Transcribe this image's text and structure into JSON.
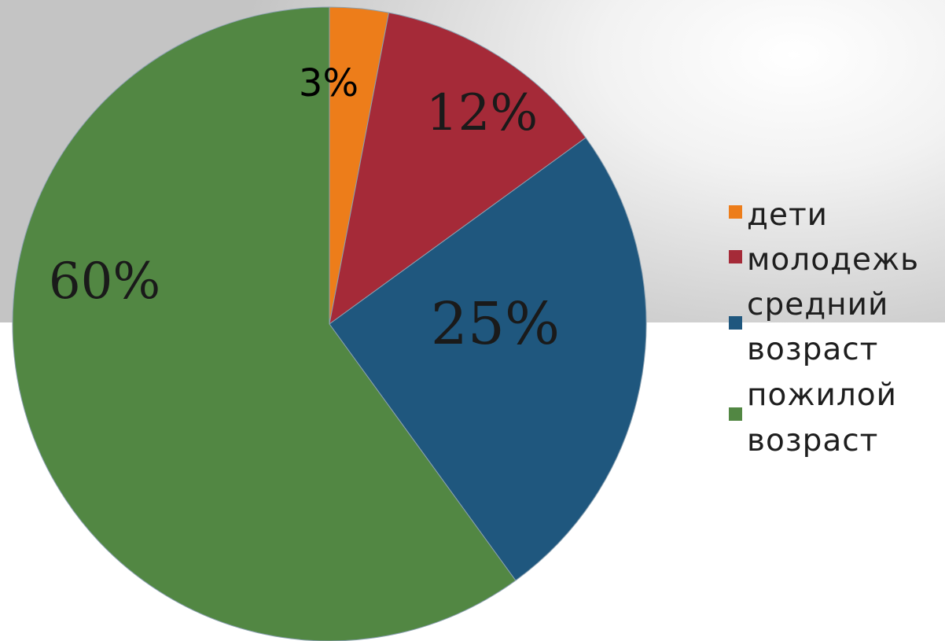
{
  "chart_data": {
    "type": "pie",
    "slices": [
      {
        "name": "дети",
        "value": 3,
        "label": "3%",
        "color": "#ed7d1a"
      },
      {
        "name": "молодежь",
        "value": 12,
        "label": "12%",
        "color": "#a52a38"
      },
      {
        "name": "средний возраст",
        "value": 25,
        "label": "25%",
        "color": "#1f577e"
      },
      {
        "name": "пожилой возраст",
        "value": 60,
        "label": "60%",
        "color": "#528743"
      }
    ],
    "legend": {
      "placement": "right",
      "entries": [
        {
          "lines": [
            "дети"
          ],
          "color": "#ed7d1a"
        },
        {
          "lines": [
            "молодежь"
          ],
          "color": "#a52a38"
        },
        {
          "lines": [
            "средний",
            "возраст"
          ],
          "color": "#1f577e"
        },
        {
          "lines": [
            "пожилой",
            "возраст"
          ],
          "color": "#528743"
        }
      ]
    }
  }
}
